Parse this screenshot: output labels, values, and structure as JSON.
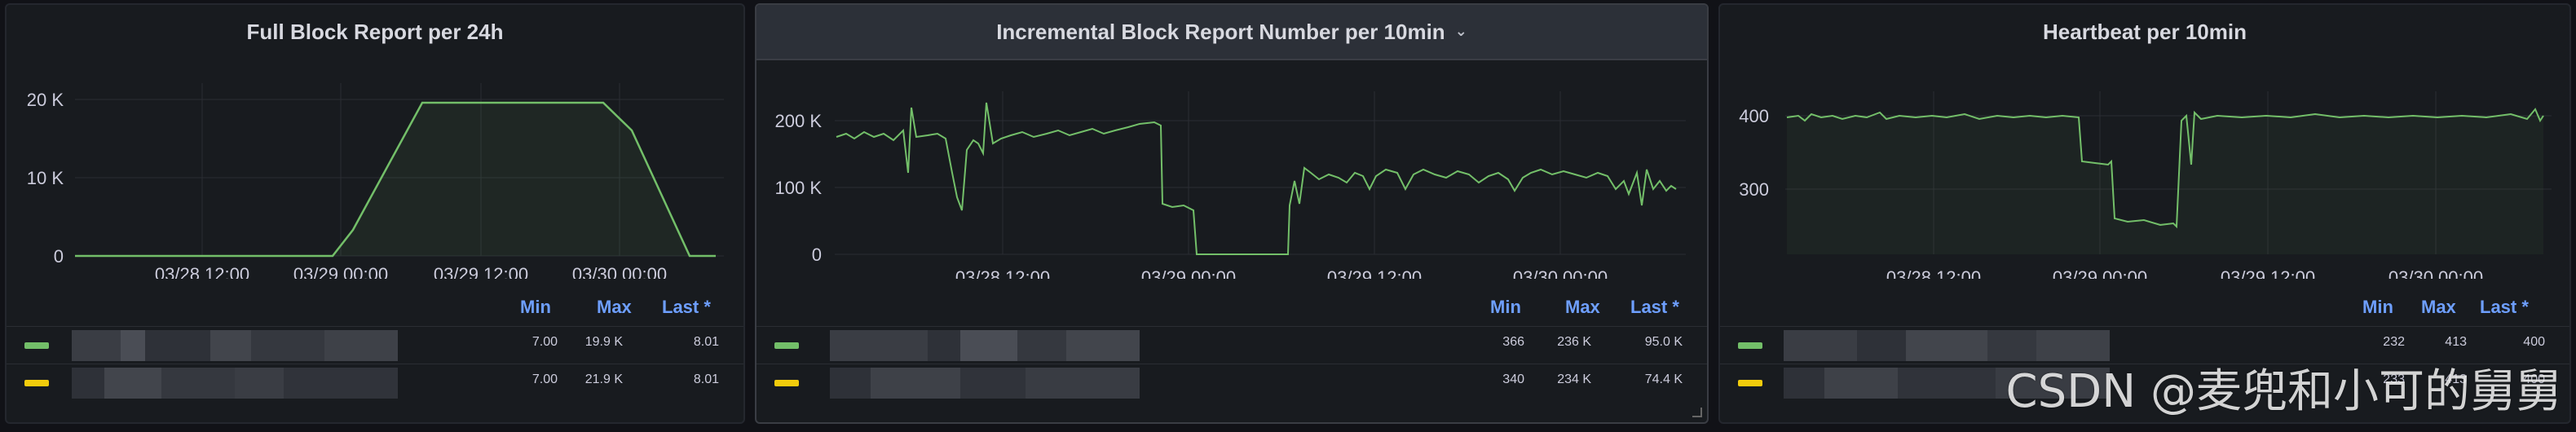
{
  "panels": [
    {
      "title": "Full Block Report per 24h",
      "y_ticks": [
        "20 K",
        "10 K",
        "0"
      ],
      "x_ticks": [
        "03/28 12:00",
        "03/29 00:00",
        "03/29 12:00",
        "03/30 00:00"
      ],
      "legend_headers": {
        "min": "Min",
        "max": "Max",
        "last": "Last *"
      },
      "rows": [
        {
          "color": "#73bf69",
          "min": "7.00",
          "max": "19.9 K",
          "last": "8.01"
        },
        {
          "color": "#f2cc0c",
          "min": "7.00",
          "max": "21.9 K",
          "last": "8.01"
        }
      ]
    },
    {
      "title": "Incremental Block Report Number per 10min",
      "y_ticks": [
        "200 K",
        "100 K",
        "0"
      ],
      "x_ticks": [
        "03/28 12:00",
        "03/29 00:00",
        "03/29 12:00",
        "03/30 00:00"
      ],
      "legend_headers": {
        "min": "Min",
        "max": "Max",
        "last": "Last *"
      },
      "rows": [
        {
          "color": "#73bf69",
          "min": "366",
          "max": "236 K",
          "last": "95.0 K"
        },
        {
          "color": "#f2cc0c",
          "min": "340",
          "max": "234 K",
          "last": "74.4 K"
        }
      ]
    },
    {
      "title": "Heartbeat per 10min",
      "y_ticks": [
        "400",
        "300"
      ],
      "x_ticks": [
        "03/28 12:00",
        "03/29 00:00",
        "03/29 12:00",
        "03/30 00:00"
      ],
      "legend_headers": {
        "min": "Min",
        "max": "Max",
        "last": "Last *"
      },
      "rows": [
        {
          "color": "#73bf69",
          "min": "232",
          "max": "413",
          "last": "400"
        },
        {
          "color": "#f2cc0c",
          "min": "233",
          "max": "413",
          "last": "400"
        }
      ]
    }
  ],
  "chart_data": [
    {
      "type": "area",
      "title": "Full Block Report per 24h",
      "x": [
        "03/28 00:00",
        "03/28 12:00",
        "03/29 00:00",
        "03/29 03:00",
        "03/29 06:00",
        "03/29 12:00",
        "03/29 18:00",
        "03/30 00:00",
        "03/30 03:00",
        "03/30 12:00",
        "03/30 15:00"
      ],
      "series": [
        {
          "values": [
            0,
            0,
            0,
            3500,
            19900,
            19900,
            19900,
            19900,
            16000,
            0,
            0
          ]
        }
      ],
      "ylim": [
        0,
        25000
      ]
    },
    {
      "type": "line",
      "title": "Incremental Block Report Number per 10min",
      "x": [
        "03/28 00:00",
        "03/28 06:00",
        "03/28 09:00",
        "03/28 12:00",
        "03/28 18:00",
        "03/29 00:00",
        "03/29 03:00",
        "03/29 06:00",
        "03/29 12:00",
        "03/29 18:00",
        "03/30 00:00",
        "03/30 06:00",
        "03/30 09:00"
      ],
      "series": [
        {
          "values": [
            180000,
            175000,
            80000,
            170000,
            190000,
            70000,
            0,
            0,
            80000,
            90000,
            100000,
            100000,
            95000
          ]
        }
      ],
      "ylim": [
        0,
        236000
      ]
    },
    {
      "type": "line",
      "title": "Heartbeat per 10min",
      "x": [
        "03/28 00:00",
        "03/28 12:00",
        "03/28 18:00",
        "03/29 00:00",
        "03/29 06:00",
        "03/29 12:00",
        "03/30 00:00",
        "03/30 12:00"
      ],
      "series": [
        {
          "values": [
            400,
            400,
            400,
            335,
            255,
            400,
            400,
            400
          ]
        }
      ],
      "ylim": [
        220,
        420
      ]
    }
  ],
  "watermark": "CSDN @麦兜和小可的舅舅"
}
